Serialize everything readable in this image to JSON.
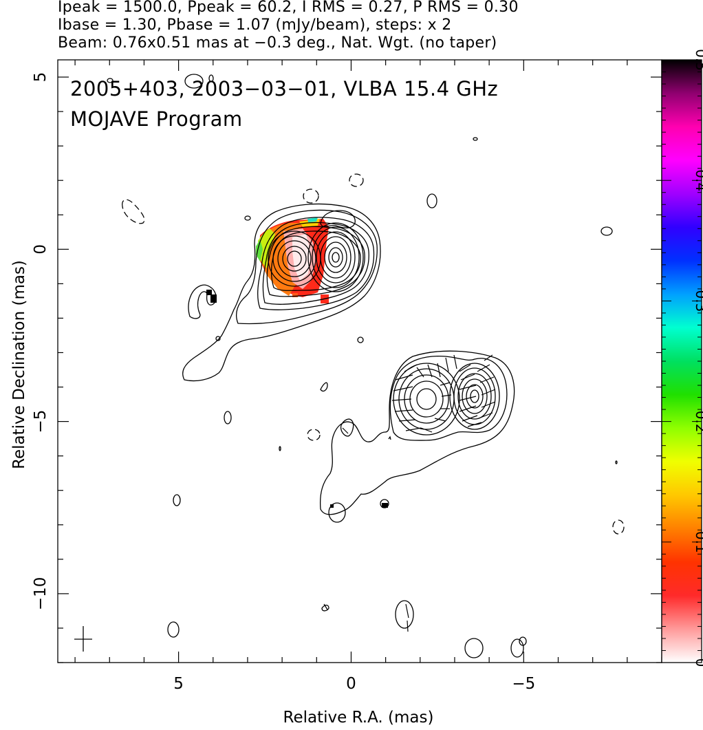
{
  "header": {
    "line1": "Ipeak = 1500.0, Ppeak = 60.2, I RMS = 0.27, P RMS = 0.30",
    "line2": "Ibase = 1.30, Pbase = 1.07 (mJy/beam), steps: x 2",
    "line3": "Beam: 0.76x0.51 mas at −0.3 deg., Nat. Wgt. (no taper)"
  },
  "title": {
    "line1": "2005+403, 2003−03−01, VLBA 15.4 GHz",
    "line2": "MOJAVE Program"
  },
  "chart_data": {
    "type": "heatmap",
    "description_free": true,
    "xlabel": "Relative R.A. (mas)",
    "ylabel": "Relative Declination (mas)",
    "xlim": [
      8.5,
      -9
    ],
    "ylim": [
      -12,
      5.5
    ],
    "x_inverted": true,
    "xticks": [
      5,
      0,
      -5
    ],
    "xtick_labels": [
      "5",
      "0",
      "−5"
    ],
    "yticks": [
      5,
      0,
      -5,
      -10
    ],
    "ytick_labels": [
      "5",
      "0",
      "−5",
      "−10"
    ],
    "colorbar": {
      "min": 0,
      "max": 0.5,
      "ticks": [
        0,
        0.1,
        0.2,
        0.3,
        0.4,
        0.5
      ],
      "tick_labels": [
        "0",
        "0.1",
        "0.2",
        "0.3",
        "0.4",
        "0.5"
      ],
      "colors": [
        "#ffffff",
        "#ff9a9a",
        "#ff2a2a",
        "#ff3300",
        "#ff8000",
        "#ffc800",
        "#f0ff00",
        "#90ff00",
        "#20e000",
        "#00e060",
        "#00ffd0",
        "#00a0ff",
        "#0030ff",
        "#3000ff",
        "#a000ff",
        "#ff00ff",
        "#ff00b0",
        "#900070",
        "#000000"
      ]
    },
    "components": [
      {
        "x": 1.7,
        "y": -0.35
      },
      {
        "x": 0.5,
        "y": -0.3
      },
      {
        "x": -2.2,
        "y": -4.4
      },
      {
        "x": -3.5,
        "y": -4.25
      }
    ],
    "beam_marker": {
      "x": 7.8,
      "y": -11.3
    }
  }
}
